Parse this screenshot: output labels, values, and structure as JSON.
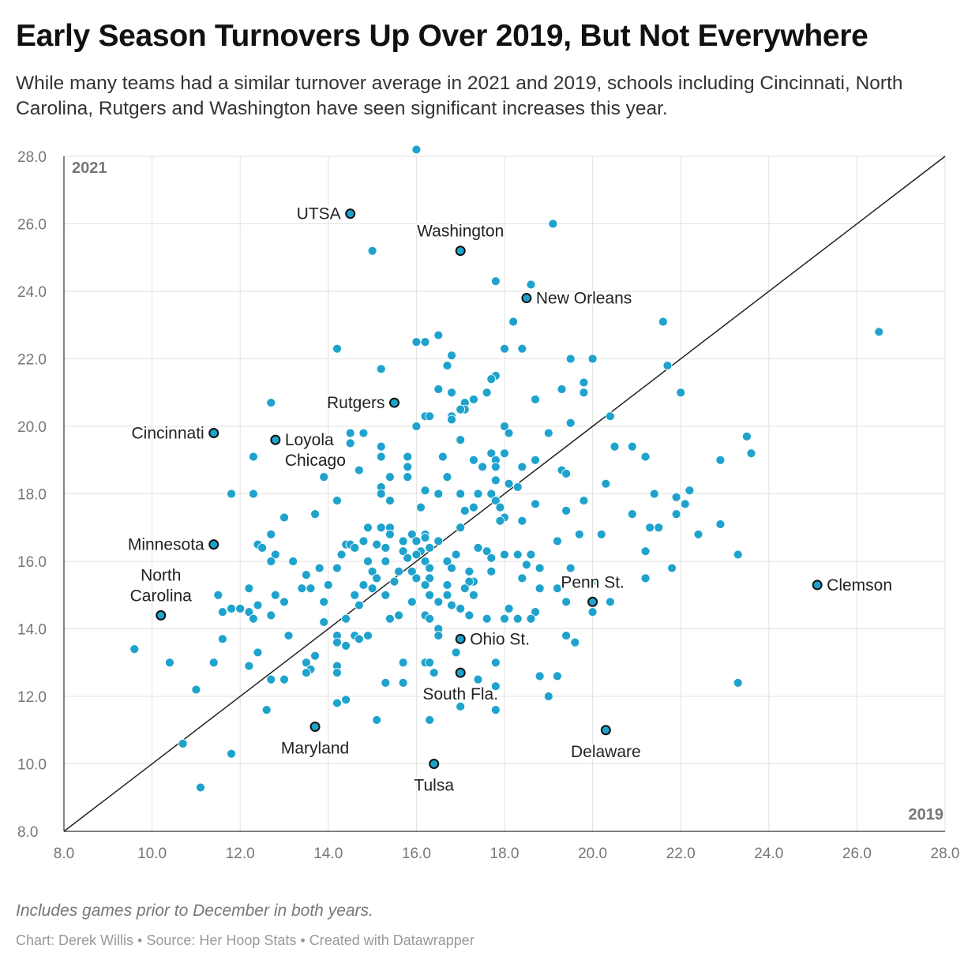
{
  "header": {
    "title": "Early Season Turnovers Up Over 2019, But Not Everywhere",
    "subtitle": "While many teams had a similar turnover average in 2021 and 2019, schools including Cincinnati, North Carolina, Rutgers and Washington have seen significant increases this year."
  },
  "footer": {
    "notes": "Includes games prior to December in both years.",
    "credits": "Chart: Derek Willis • Source: Her Hoop Stats • Created with Datawrapper"
  },
  "colors": {
    "dot": "#1ea3cd",
    "dot_stroke": "#ffffff",
    "highlight": "#1ea3cd",
    "highlight_stroke": "#111111",
    "grid": "#e2e2e2",
    "diagonal": "#222222"
  },
  "chart_data": {
    "type": "scatter",
    "title": "Early Season Turnovers Up Over 2019, But Not Everywhere",
    "xlabel": "2019",
    "ylabel": "2021",
    "xlim": [
      8,
      28
    ],
    "ylim": [
      8,
      28
    ],
    "x_ticks": [
      "8.0",
      "10.0",
      "12.0",
      "14.0",
      "16.0",
      "18.0",
      "20.0",
      "22.0",
      "24.0",
      "26.0",
      "28.0"
    ],
    "y_ticks": [
      "8.0",
      "10.0",
      "12.0",
      "14.0",
      "16.0",
      "18.0",
      "20.0",
      "22.0",
      "24.0",
      "26.0",
      "28.0"
    ],
    "reference_line": "y = x",
    "labeled": [
      {
        "name": "UTSA",
        "x": 14.5,
        "y": 26.3,
        "label_pos": "left"
      },
      {
        "name": "Washington",
        "x": 17.0,
        "y": 25.2,
        "label_pos": "above"
      },
      {
        "name": "New Orleans",
        "x": 18.5,
        "y": 23.8,
        "label_pos": "right"
      },
      {
        "name": "Rutgers",
        "x": 15.5,
        "y": 20.7,
        "label_pos": "left"
      },
      {
        "name": "Cincinnati",
        "x": 11.4,
        "y": 19.8,
        "label_pos": "left"
      },
      {
        "name": "Loyola Chicago",
        "x": 12.8,
        "y": 19.6,
        "label_pos": "right"
      },
      {
        "name": "Minnesota",
        "x": 11.4,
        "y": 16.5,
        "label_pos": "left"
      },
      {
        "name": "North Carolina",
        "x": 10.2,
        "y": 14.4,
        "label_pos": "above"
      },
      {
        "name": "Penn St.",
        "x": 20.0,
        "y": 14.8,
        "label_pos": "above"
      },
      {
        "name": "Clemson",
        "x": 25.1,
        "y": 15.3,
        "label_pos": "right"
      },
      {
        "name": "Ohio St.",
        "x": 17.0,
        "y": 13.7,
        "label_pos": "right"
      },
      {
        "name": "South Fla.",
        "x": 17.0,
        "y": 12.7,
        "label_pos": "below"
      },
      {
        "name": "Maryland",
        "x": 13.7,
        "y": 11.1,
        "label_pos": "below"
      },
      {
        "name": "Delaware",
        "x": 20.3,
        "y": 11.0,
        "label_pos": "below"
      },
      {
        "name": "Tulsa",
        "x": 16.4,
        "y": 10.0,
        "label_pos": "below"
      }
    ],
    "points": [
      [
        16.0,
        28.2
      ],
      [
        19.1,
        26.0
      ],
      [
        15.0,
        25.2
      ],
      [
        17.8,
        24.3
      ],
      [
        18.6,
        24.2
      ],
      [
        21.6,
        23.1
      ],
      [
        18.2,
        23.1
      ],
      [
        26.5,
        22.8
      ],
      [
        16.5,
        22.7
      ],
      [
        16.0,
        22.5
      ],
      [
        16.2,
        22.5
      ],
      [
        14.2,
        22.3
      ],
      [
        18.0,
        22.3
      ],
      [
        18.4,
        22.3
      ],
      [
        16.8,
        22.1
      ],
      [
        19.5,
        22.0
      ],
      [
        20.0,
        22.0
      ],
      [
        16.7,
        21.8
      ],
      [
        21.7,
        21.8
      ],
      [
        15.2,
        21.7
      ],
      [
        17.8,
        21.5
      ],
      [
        17.7,
        21.4
      ],
      [
        19.8,
        21.3
      ],
      [
        16.5,
        21.1
      ],
      [
        19.3,
        21.1
      ],
      [
        22.0,
        21.0
      ],
      [
        16.8,
        21.0
      ],
      [
        17.6,
        21.0
      ],
      [
        19.8,
        21.0
      ],
      [
        18.7,
        20.8
      ],
      [
        17.3,
        20.8
      ],
      [
        17.1,
        20.7
      ],
      [
        12.7,
        20.7
      ],
      [
        17.1,
        20.5
      ],
      [
        16.2,
        20.3
      ],
      [
        16.3,
        20.3
      ],
      [
        17.0,
        20.5
      ],
      [
        16.8,
        20.3
      ],
      [
        20.4,
        20.3
      ],
      [
        16.8,
        20.2
      ],
      [
        19.5,
        20.1
      ],
      [
        16.0,
        20.0
      ],
      [
        18.0,
        20.0
      ],
      [
        14.8,
        19.8
      ],
      [
        14.5,
        19.8
      ],
      [
        19.0,
        19.8
      ],
      [
        18.1,
        19.8
      ],
      [
        23.5,
        19.7
      ],
      [
        17.0,
        19.6
      ],
      [
        14.5,
        19.5
      ],
      [
        15.2,
        19.4
      ],
      [
        20.9,
        19.4
      ],
      [
        20.5,
        19.4
      ],
      [
        23.6,
        19.2
      ],
      [
        17.7,
        19.2
      ],
      [
        18.0,
        19.2
      ],
      [
        12.3,
        19.1
      ],
      [
        15.2,
        19.1
      ],
      [
        15.8,
        19.1
      ],
      [
        16.6,
        19.1
      ],
      [
        21.2,
        19.1
      ],
      [
        18.7,
        19.0
      ],
      [
        17.8,
        19.0
      ],
      [
        17.3,
        19.0
      ],
      [
        22.9,
        19.0
      ],
      [
        17.8,
        18.8
      ],
      [
        15.8,
        18.8
      ],
      [
        17.5,
        18.8
      ],
      [
        18.4,
        18.8
      ],
      [
        19.3,
        18.7
      ],
      [
        14.7,
        18.7
      ],
      [
        19.4,
        18.6
      ],
      [
        15.4,
        18.5
      ],
      [
        13.9,
        18.5
      ],
      [
        16.7,
        18.5
      ],
      [
        15.8,
        18.5
      ],
      [
        17.8,
        18.4
      ],
      [
        18.1,
        18.3
      ],
      [
        15.2,
        18.2
      ],
      [
        20.3,
        18.3
      ],
      [
        18.3,
        18.2
      ],
      [
        16.2,
        18.1
      ],
      [
        15.2,
        18.0
      ],
      [
        16.5,
        18.0
      ],
      [
        12.3,
        18.0
      ],
      [
        11.8,
        18.0
      ],
      [
        22.2,
        18.1
      ],
      [
        17.0,
        18.0
      ],
      [
        17.7,
        18.0
      ],
      [
        17.4,
        18.0
      ],
      [
        21.4,
        18.0
      ],
      [
        21.9,
        17.9
      ],
      [
        19.8,
        17.8
      ],
      [
        15.4,
        17.8
      ],
      [
        17.8,
        17.8
      ],
      [
        14.2,
        17.8
      ],
      [
        22.1,
        17.7
      ],
      [
        18.7,
        17.7
      ],
      [
        16.1,
        17.6
      ],
      [
        17.3,
        17.6
      ],
      [
        17.9,
        17.6
      ],
      [
        17.1,
        17.5
      ],
      [
        19.4,
        17.5
      ],
      [
        13.7,
        17.4
      ],
      [
        20.9,
        17.4
      ],
      [
        13.0,
        17.3
      ],
      [
        18.0,
        17.3
      ],
      [
        17.9,
        17.2
      ],
      [
        21.9,
        17.4
      ],
      [
        18.4,
        17.2
      ],
      [
        22.9,
        17.1
      ],
      [
        14.9,
        17.0
      ],
      [
        15.2,
        17.0
      ],
      [
        15.4,
        17.0
      ],
      [
        17.0,
        17.0
      ],
      [
        21.3,
        17.0
      ],
      [
        21.5,
        17.0
      ],
      [
        12.7,
        16.8
      ],
      [
        15.4,
        16.8
      ],
      [
        15.9,
        16.8
      ],
      [
        16.2,
        16.8
      ],
      [
        20.2,
        16.8
      ],
      [
        19.7,
        16.8
      ],
      [
        22.4,
        16.8
      ],
      [
        14.8,
        16.6
      ],
      [
        15.7,
        16.6
      ],
      [
        16.5,
        16.6
      ],
      [
        16.0,
        16.6
      ],
      [
        16.2,
        16.7
      ],
      [
        19.2,
        16.6
      ],
      [
        12.4,
        16.5
      ],
      [
        14.4,
        16.5
      ],
      [
        14.5,
        16.5
      ],
      [
        15.1,
        16.5
      ],
      [
        15.3,
        16.4
      ],
      [
        16.3,
        16.4
      ],
      [
        17.4,
        16.4
      ],
      [
        12.5,
        16.4
      ],
      [
        14.6,
        16.4
      ],
      [
        16.1,
        16.3
      ],
      [
        17.6,
        16.3
      ],
      [
        21.2,
        16.3
      ],
      [
        15.7,
        16.3
      ],
      [
        16.0,
        16.2
      ],
      [
        12.8,
        16.2
      ],
      [
        14.3,
        16.2
      ],
      [
        16.9,
        16.2
      ],
      [
        18.3,
        16.2
      ],
      [
        18.6,
        16.2
      ],
      [
        18.0,
        16.2
      ],
      [
        17.7,
        16.1
      ],
      [
        16.7,
        16.0
      ],
      [
        13.2,
        16.0
      ],
      [
        14.9,
        16.0
      ],
      [
        15.3,
        16.0
      ],
      [
        15.8,
        16.1
      ],
      [
        12.7,
        16.0
      ],
      [
        16.2,
        16.0
      ],
      [
        18.5,
        15.9
      ],
      [
        23.3,
        16.2
      ],
      [
        13.8,
        15.8
      ],
      [
        14.2,
        15.8
      ],
      [
        15.9,
        15.7
      ],
      [
        16.3,
        15.8
      ],
      [
        16.8,
        15.8
      ],
      [
        17.2,
        15.7
      ],
      [
        19.5,
        15.8
      ],
      [
        21.8,
        15.8
      ],
      [
        15.0,
        15.7
      ],
      [
        15.6,
        15.7
      ],
      [
        17.7,
        15.7
      ],
      [
        18.8,
        15.8
      ],
      [
        13.5,
        15.6
      ],
      [
        15.1,
        15.5
      ],
      [
        17.3,
        15.4
      ],
      [
        16.0,
        15.5
      ],
      [
        16.3,
        15.5
      ],
      [
        14.0,
        15.3
      ],
      [
        14.8,
        15.3
      ],
      [
        15.5,
        15.4
      ],
      [
        16.7,
        15.3
      ],
      [
        17.2,
        15.4
      ],
      [
        18.4,
        15.5
      ],
      [
        20.0,
        15.4
      ],
      [
        21.2,
        15.5
      ],
      [
        12.2,
        15.2
      ],
      [
        13.4,
        15.2
      ],
      [
        13.6,
        15.2
      ],
      [
        15.0,
        15.2
      ],
      [
        16.2,
        15.3
      ],
      [
        19.2,
        15.2
      ],
      [
        17.1,
        15.2
      ],
      [
        18.8,
        15.2
      ],
      [
        11.5,
        15.0
      ],
      [
        12.8,
        15.0
      ],
      [
        14.6,
        15.0
      ],
      [
        15.3,
        15.0
      ],
      [
        16.3,
        15.0
      ],
      [
        16.7,
        15.0
      ],
      [
        17.3,
        15.0
      ],
      [
        19.4,
        14.8
      ],
      [
        20.4,
        14.8
      ],
      [
        15.9,
        14.8
      ],
      [
        16.5,
        14.8
      ],
      [
        13.9,
        14.8
      ],
      [
        13.0,
        14.8
      ],
      [
        12.4,
        14.7
      ],
      [
        14.7,
        14.7
      ],
      [
        16.8,
        14.7
      ],
      [
        17.0,
        14.6
      ],
      [
        18.1,
        14.6
      ],
      [
        12.0,
        14.6
      ],
      [
        11.6,
        14.5
      ],
      [
        11.8,
        14.6
      ],
      [
        12.2,
        14.5
      ],
      [
        15.6,
        14.4
      ],
      [
        16.2,
        14.4
      ],
      [
        17.2,
        14.4
      ],
      [
        18.7,
        14.5
      ],
      [
        20.0,
        14.5
      ],
      [
        12.3,
        14.3
      ],
      [
        12.7,
        14.4
      ],
      [
        14.4,
        14.3
      ],
      [
        15.4,
        14.3
      ],
      [
        16.3,
        14.3
      ],
      [
        17.6,
        14.3
      ],
      [
        18.0,
        14.3
      ],
      [
        18.3,
        14.3
      ],
      [
        18.6,
        14.3
      ],
      [
        13.9,
        14.2
      ],
      [
        16.5,
        14.0
      ],
      [
        14.2,
        13.8
      ],
      [
        14.6,
        13.8
      ],
      [
        14.9,
        13.8
      ],
      [
        16.5,
        13.8
      ],
      [
        13.1,
        13.8
      ],
      [
        19.4,
        13.8
      ],
      [
        11.6,
        13.7
      ],
      [
        14.2,
        13.6
      ],
      [
        14.7,
        13.7
      ],
      [
        14.4,
        13.5
      ],
      [
        12.4,
        13.3
      ],
      [
        19.6,
        13.6
      ],
      [
        9.6,
        13.4
      ],
      [
        16.9,
        13.3
      ],
      [
        13.7,
        13.2
      ],
      [
        10.4,
        13.0
      ],
      [
        11.4,
        13.0
      ],
      [
        13.5,
        13.0
      ],
      [
        15.7,
        13.0
      ],
      [
        16.2,
        13.0
      ],
      [
        16.3,
        13.0
      ],
      [
        17.8,
        13.0
      ],
      [
        12.2,
        12.9
      ],
      [
        14.2,
        12.9
      ],
      [
        13.6,
        12.8
      ],
      [
        13.5,
        12.7
      ],
      [
        13.0,
        12.5
      ],
      [
        12.7,
        12.5
      ],
      [
        14.2,
        12.7
      ],
      [
        16.4,
        12.7
      ],
      [
        17.4,
        12.5
      ],
      [
        18.8,
        12.6
      ],
      [
        19.2,
        12.6
      ],
      [
        23.3,
        12.4
      ],
      [
        15.3,
        12.4
      ],
      [
        15.7,
        12.4
      ],
      [
        11.0,
        12.2
      ],
      [
        17.8,
        12.3
      ],
      [
        14.4,
        11.9
      ],
      [
        14.2,
        11.8
      ],
      [
        19.0,
        12.0
      ],
      [
        17.0,
        11.7
      ],
      [
        12.6,
        11.6
      ],
      [
        17.8,
        11.6
      ],
      [
        15.1,
        11.3
      ],
      [
        16.3,
        11.3
      ],
      [
        10.7,
        10.6
      ],
      [
        11.8,
        10.3
      ],
      [
        11.1,
        9.3
      ]
    ]
  }
}
